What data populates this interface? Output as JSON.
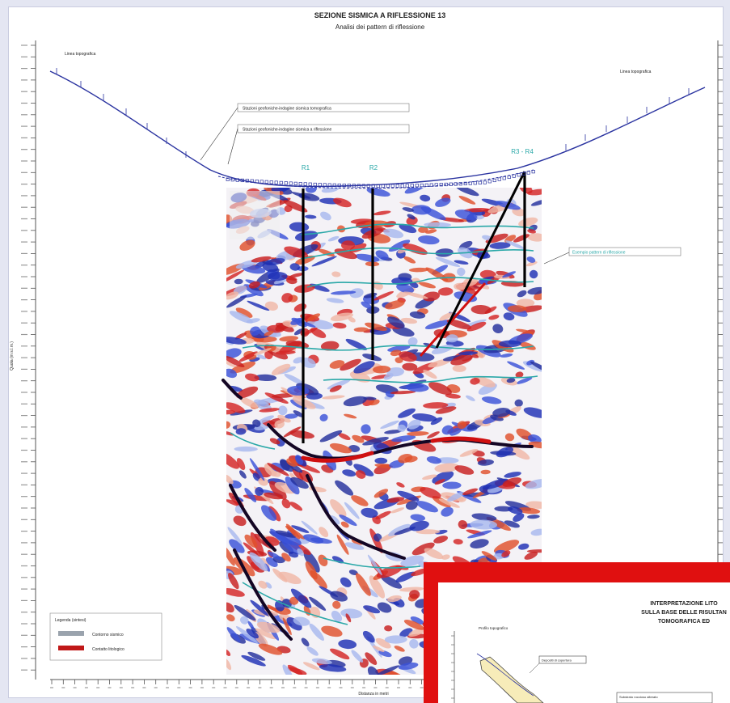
{
  "title": "SEZIONE SISMICA A RIFLESSIONE 13",
  "subtitle": "Analisi dei pattern di riflessione",
  "left_label": "Linea topografica",
  "right_label": "Linea topografica",
  "callouts": {
    "tomographic": "Stazioni geofoniche-indagine sismica tomografica",
    "reflection": "Stazioni geofoniche-indagine sismica a riflessione",
    "pattern": "Esempio pattern di riflessione"
  },
  "stations": [
    "R1",
    "R2",
    "R3 - R4"
  ],
  "legend": {
    "title": "Legenda (sintesi)",
    "items": [
      "Contorno sismico",
      "Contatto litologico"
    ]
  },
  "x_axis_label": "Distanza in metri",
  "y_axis_label": "Quota (m s.l.m.)",
  "inset": {
    "title_lines": [
      "INTERPRETAZIONE LITO",
      "SULLA BASE DELLE RISULTAN",
      "TOMOGRAFICA ED"
    ],
    "topo_label": "Profilo topografico",
    "box1": "Depositi di copertura",
    "box2": "Substrato roccioso alterato"
  },
  "colors": {
    "topo": "#2a33a0",
    "fault": "#000000",
    "horizon_dark": "#24104c",
    "horizon_red": "#d01010",
    "cyan": "#2aa8a8",
    "inset_border": "#e01010",
    "inset_fill": "#f7ecb9"
  }
}
